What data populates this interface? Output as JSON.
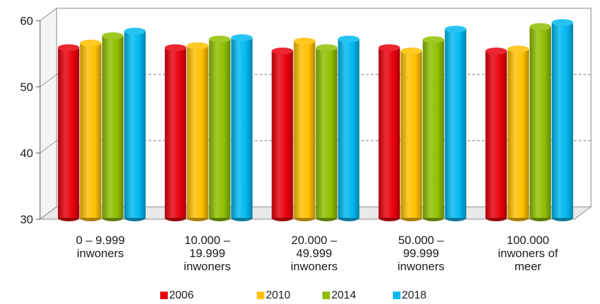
{
  "chart_data": {
    "type": "bar",
    "categories": [
      [
        "0 – 9.999",
        "inwoners"
      ],
      [
        "10.000 –",
        "19.999",
        "inwoners"
      ],
      [
        "20.000 –",
        "49.999",
        "inwoners"
      ],
      [
        "50.000 –",
        "99.999",
        "inwoners"
      ],
      [
        "100.000",
        "inwoners of",
        "meer"
      ]
    ],
    "series": [
      {
        "name": "2006",
        "color": "#e8000b",
        "values": [
          55.5,
          55.5,
          55.0,
          55.5,
          55.0
        ]
      },
      {
        "name": "2010",
        "color": "#ffc000",
        "values": [
          56.2,
          55.8,
          56.5,
          55.0,
          55.3
        ]
      },
      {
        "name": "2014",
        "color": "#8fbf00",
        "values": [
          57.3,
          56.8,
          55.5,
          56.7,
          58.7
        ]
      },
      {
        "name": "2018",
        "color": "#00b8f0",
        "values": [
          58.0,
          57.0,
          56.8,
          58.3,
          59.3
        ]
      }
    ],
    "yticks": [
      "30",
      "40",
      "50",
      "60"
    ],
    "ylim": [
      30,
      60
    ],
    "grid": true,
    "legend": "bottom"
  }
}
